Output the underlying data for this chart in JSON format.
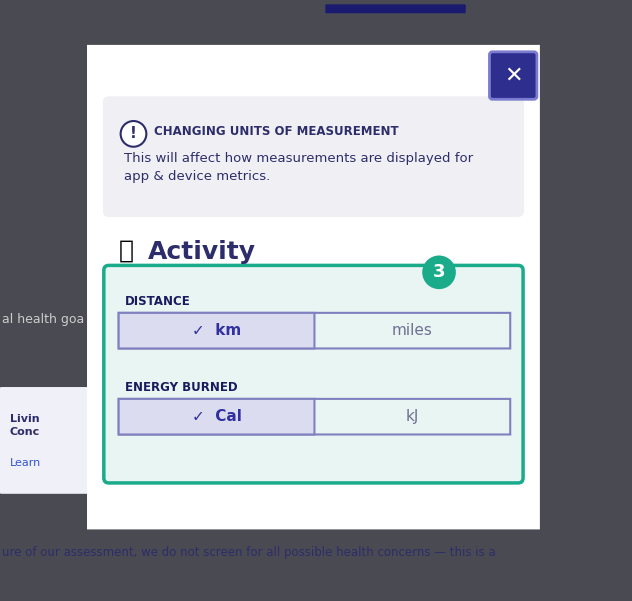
{
  "bg_color": "#4a4a52",
  "modal_bg": "#ffffff",
  "info_box_bg": "#f0f0f4",
  "info_title": "CHANGING UNITS OF MEASUREMENT",
  "info_body": "This will affect how measurements are displayed for\napp & device metrics.",
  "info_text_color": "#2d2d6b",
  "close_btn_bg": "#2e2e8f",
  "close_btn_border": "#7b7bcf",
  "activity_title": "Activity",
  "activity_color": "#2d2d6b",
  "green_border": "#1aab8a",
  "highlight_bg": "#e8f5f2",
  "distance_label": "DISTANCE",
  "energy_label": "ENERGY BURNED",
  "selected_bg": "#dcdcf0",
  "selected_border": "#8080c0",
  "selected_text_color": "#3030a0",
  "unselected_bg": "#e8f5f2",
  "unselected_text_color": "#707090",
  "badge_bg": "#1aab8a",
  "badge_text": "3",
  "badge_text_color": "#ffffff",
  "label_color": "#1a1a5e",
  "top_bar_color": "#1a1a6e",
  "bottom_text": "ure of our assessment, we do not screen for all possible health concerns — this is a",
  "bottom_text_color": "#2d2d6b",
  "left_partial_text": "al health goa",
  "left_card_title": "Livin\nConc",
  "left_card_link": "Learn",
  "card_bg": "#f0f0f8"
}
